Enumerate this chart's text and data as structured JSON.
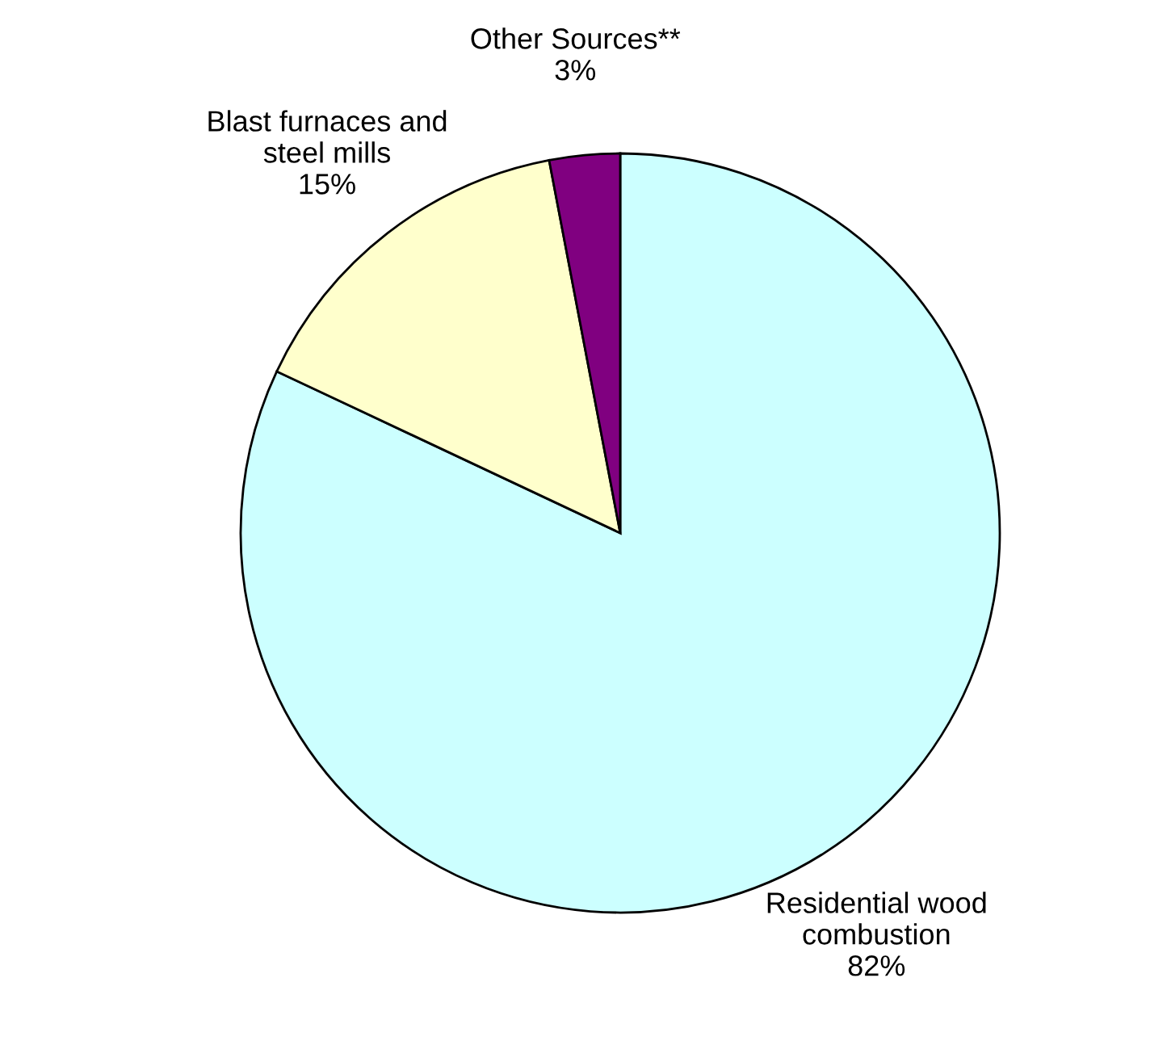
{
  "chart_data": {
    "type": "pie",
    "categories": [
      "Residential wood\ncombustion\n82%",
      "Blast furnaces and\nsteel mills\n15%",
      "Other Sources**\n3%"
    ],
    "values": [
      82,
      15,
      3
    ],
    "colors": [
      "#ccffff",
      "#ffffcc",
      "#800080"
    ]
  }
}
